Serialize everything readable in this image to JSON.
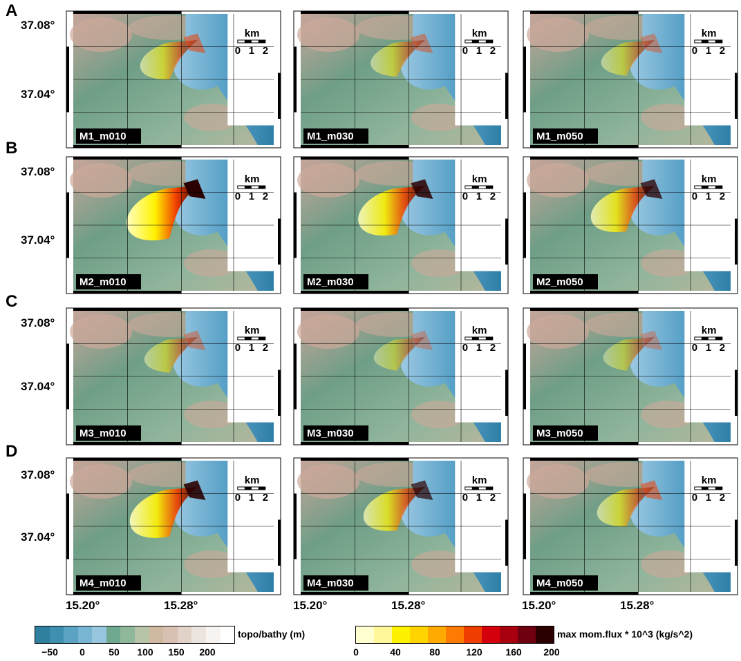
{
  "rows": [
    {
      "label": "A",
      "panels": [
        "M1_m010",
        "M1_m030",
        "M1_m050"
      ],
      "flux": [
        0.35,
        0.2,
        0.15
      ]
    },
    {
      "label": "B",
      "panels": [
        "M2_m010",
        "M2_m030",
        "M2_m050"
      ],
      "flux": [
        1.0,
        0.8,
        0.65
      ]
    },
    {
      "label": "C",
      "panels": [
        "M3_m010",
        "M3_m030",
        "M3_m050"
      ],
      "flux": [
        0.15,
        0.05,
        0.05
      ]
    },
    {
      "label": "D",
      "panels": [
        "M4_m010",
        "M4_m030",
        "M4_m050"
      ],
      "flux": [
        0.85,
        0.55,
        0.35
      ]
    }
  ],
  "lat_labels": [
    "37.08°",
    "37.04°"
  ],
  "lon_labels": [
    "15.20°",
    "15.28°"
  ],
  "scalebar": {
    "unit": "km",
    "ticks": [
      "0",
      "1",
      "2"
    ]
  },
  "topo_colorbar": {
    "label": "topo/bathy (m)",
    "ticks": [
      "−50",
      "0",
      "50",
      "100",
      "150",
      "200"
    ],
    "colors": [
      "#2f7f9f",
      "#3f8fb0",
      "#5aa3c3",
      "#78b5d3",
      "#98c6de",
      "#6da88f",
      "#8fb79a",
      "#b6c3a6",
      "#cfb9a1",
      "#d8c1b3",
      "#e2d2c8",
      "#ece4df",
      "#f6f3f1",
      "#ffffff"
    ]
  },
  "flux_colorbar": {
    "label": "max mom.flux * 10^3 (kg/s^2)",
    "ticks": [
      "0",
      "40",
      "80",
      "120",
      "160",
      "200"
    ],
    "colors": [
      "#ffffd0",
      "#fff79a",
      "#fff200",
      "#ffd400",
      "#ffaa00",
      "#ff7a00",
      "#f03e00",
      "#d4000c",
      "#a8000f",
      "#6e0010",
      "#2b0000"
    ]
  },
  "colors": {
    "sea": "#4f9ec9",
    "land": "#7fae92",
    "upland": "#cda89a",
    "title_bg": "#000000"
  }
}
